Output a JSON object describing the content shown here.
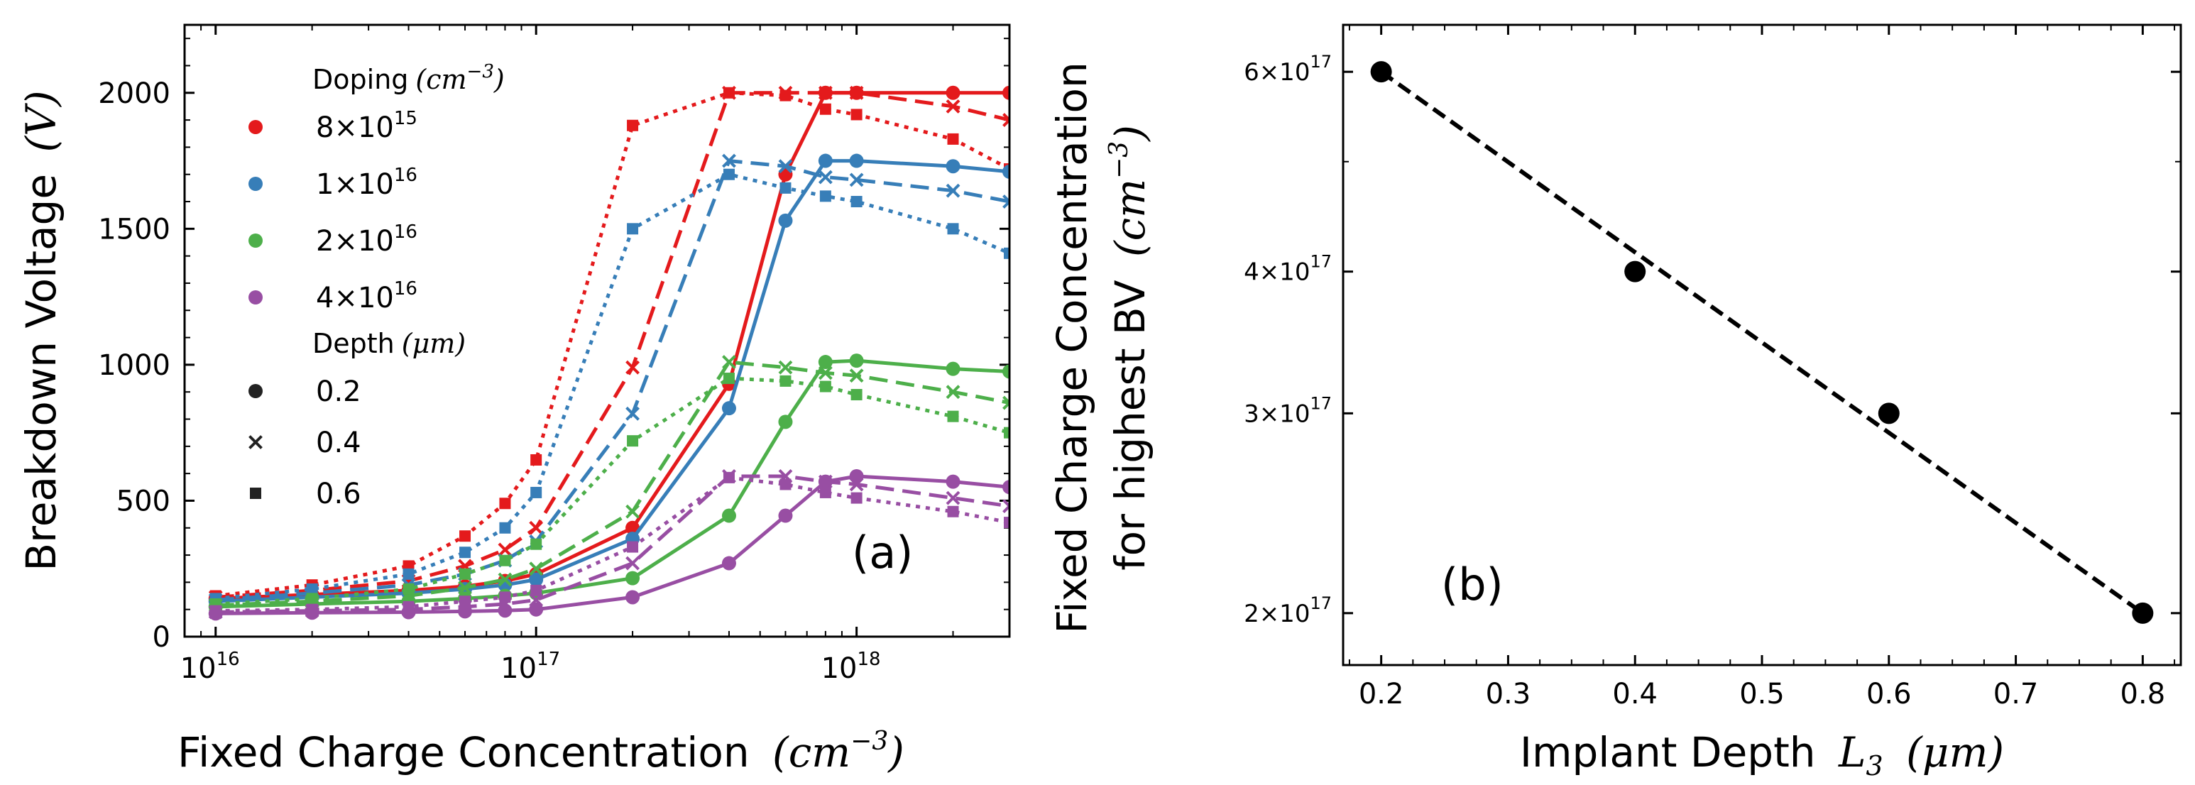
{
  "chart_data": [
    {
      "type": "line",
      "panel_label": "(a)",
      "xlabel": "Fixed Charge Concentration",
      "xlabel_unit": "(cm^-3)",
      "ylabel": "Breakdown Voltage",
      "ylabel_unit": "(V)",
      "xscale": "log",
      "xlim": [
        8000000000000000.0,
        3e+18
      ],
      "ylim": [
        0,
        2250
      ],
      "x_ticks": [
        {
          "value": 1e+16,
          "label": "10^16"
        },
        {
          "value": 1e+17,
          "label": "10^17"
        },
        {
          "value": 1e+18,
          "label": "10^18"
        }
      ],
      "y_ticks": [
        0,
        500,
        1000,
        1500,
        2000
      ],
      "x": [
        1e+16,
        2e+16,
        4e+16,
        6e+16,
        8e+16,
        1e+17,
        2e+17,
        4e+17,
        6e+17,
        8e+17,
        1e+18,
        2e+18,
        3e+18
      ],
      "legend": {
        "position": "top-left",
        "doping_title": "Doping",
        "doping_unit": "(cm^-3)",
        "doping_entries": [
          {
            "label": "8×10^15",
            "color": "#e41a1c"
          },
          {
            "label": "1×10^16",
            "color": "#377eb8"
          },
          {
            "label": "2×10^16",
            "color": "#4daf4a"
          },
          {
            "label": "4×10^16",
            "color": "#984ea3"
          }
        ],
        "depth_title": "Depth",
        "depth_unit": "(μm)",
        "depth_entries": [
          {
            "label": "0.2",
            "marker": "circle",
            "linestyle": "solid"
          },
          {
            "label": "0.4",
            "marker": "x",
            "linestyle": "dashed"
          },
          {
            "label": "0.6",
            "marker": "square",
            "linestyle": "dotted"
          }
        ]
      },
      "series": [
        {
          "doping": "8×10^15",
          "depth": "0.2",
          "color": "#e41a1c",
          "values": [
            140,
            155,
            170,
            185,
            205,
            230,
            400,
            930,
            1700,
            2000,
            2000,
            2000,
            2000
          ]
        },
        {
          "doping": "8×10^15",
          "depth": "0.4",
          "color": "#e41a1c",
          "values": [
            145,
            170,
            205,
            260,
            320,
            400,
            990,
            2000,
            2000,
            2000,
            2000,
            1950,
            1900
          ]
        },
        {
          "doping": "8×10^15",
          "depth": "0.6",
          "color": "#e41a1c",
          "values": [
            150,
            190,
            260,
            370,
            490,
            650,
            1880,
            2000,
            1990,
            1940,
            1920,
            1830,
            1720
          ]
        },
        {
          "doping": "1×10^16",
          "depth": "0.2",
          "color": "#377eb8",
          "values": [
            130,
            145,
            160,
            175,
            190,
            210,
            360,
            840,
            1530,
            1750,
            1750,
            1730,
            1710
          ]
        },
        {
          "doping": "1×10^16",
          "depth": "0.4",
          "color": "#377eb8",
          "values": [
            135,
            160,
            190,
            230,
            280,
            350,
            820,
            1750,
            1730,
            1690,
            1680,
            1640,
            1600
          ]
        },
        {
          "doping": "1×10^16",
          "depth": "0.6",
          "color": "#377eb8",
          "values": [
            140,
            175,
            230,
            310,
            400,
            530,
            1500,
            1700,
            1650,
            1620,
            1600,
            1500,
            1410
          ]
        },
        {
          "doping": "2×10^16",
          "depth": "0.2",
          "color": "#4daf4a",
          "values": [
            110,
            120,
            130,
            140,
            150,
            160,
            215,
            445,
            790,
            1010,
            1015,
            985,
            975
          ]
        },
        {
          "doping": "2×10^16",
          "depth": "0.4",
          "color": "#4daf4a",
          "values": [
            115,
            130,
            150,
            180,
            210,
            250,
            460,
            1010,
            990,
            970,
            960,
            900,
            860
          ]
        },
        {
          "doping": "2×10^16",
          "depth": "0.6",
          "color": "#4daf4a",
          "values": [
            120,
            140,
            175,
            230,
            280,
            340,
            720,
            950,
            940,
            920,
            890,
            810,
            750
          ]
        },
        {
          "doping": "4×10^16",
          "depth": "0.2",
          "color": "#984ea3",
          "values": [
            85,
            88,
            90,
            93,
            96,
            100,
            145,
            270,
            445,
            570,
            590,
            570,
            550
          ]
        },
        {
          "doping": "4×10^16",
          "depth": "0.4",
          "color": "#984ea3",
          "values": [
            90,
            95,
            100,
            110,
            120,
            135,
            270,
            590,
            590,
            570,
            560,
            510,
            480
          ]
        },
        {
          "doping": "4×10^16",
          "depth": "0.6",
          "color": "#984ea3",
          "values": [
            95,
            100,
            110,
            130,
            145,
            170,
            330,
            585,
            560,
            530,
            510,
            460,
            420
          ]
        }
      ]
    },
    {
      "type": "scatter",
      "panel_label": "(b)",
      "xlabel": "Implant Depth",
      "xlabel_symbol": "L",
      "xlabel_subscript": "3",
      "xlabel_unit": "(μm)",
      "ylabel_line1": "Fixed Charge Concentration",
      "ylabel_line2": "for highest BV",
      "ylabel_unit": "(cm^-3)",
      "yscale": "log",
      "xlim": [
        0.17,
        0.83
      ],
      "ylim": [
        1.8e+17,
        6.6e+17
      ],
      "x_ticks": [
        0.2,
        0.3,
        0.4,
        0.5,
        0.6,
        0.7,
        0.8
      ],
      "y_ticks": [
        {
          "value": 2e+17,
          "label": "2×10^17"
        },
        {
          "value": 3e+17,
          "label": "3×10^17"
        },
        {
          "value": 4e+17,
          "label": "4×10^17"
        },
        {
          "value": 6e+17,
          "label": "6×10^17"
        }
      ],
      "points": [
        {
          "x": 0.2,
          "y": 6e+17
        },
        {
          "x": 0.4,
          "y": 4e+17
        },
        {
          "x": 0.6,
          "y": 3e+17
        },
        {
          "x": 0.8,
          "y": 2e+17
        }
      ],
      "fit_line": {
        "style": "dashed",
        "color": "#000000",
        "from": {
          "x": 0.2,
          "y": 6e+17
        },
        "to": {
          "x": 0.8,
          "y": 2e+17
        }
      }
    }
  ]
}
